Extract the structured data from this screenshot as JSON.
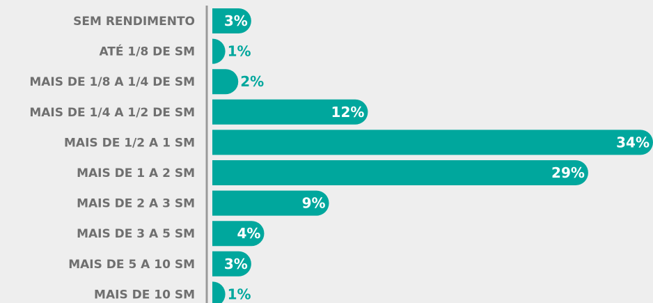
{
  "chart_data": {
    "type": "bar",
    "orientation": "horizontal",
    "categories": [
      "SEM RENDIMENTO",
      "ATÉ 1/8 DE SM",
      "MAIS DE 1/8 A 1/4 DE SM",
      "MAIS DE 1/4 A 1/2 DE SM",
      "MAIS DE 1/2 A 1 SM",
      "MAIS DE 1 A 2 SM",
      "MAIS DE 2 A 3 SM",
      "MAIS DE 3 A 5 SM",
      "MAIS DE 5 A 10 SM",
      "MAIS DE 10 SM"
    ],
    "values": [
      3,
      1,
      2,
      12,
      34,
      29,
      9,
      4,
      3,
      1
    ],
    "value_labels": [
      "3%",
      "1%",
      "2%",
      "12%",
      "34%",
      "29%",
      "9%",
      "4%",
      "3%",
      "1%"
    ],
    "title": "",
    "xlabel": "",
    "ylabel": "",
    "xlim": [
      0,
      34
    ],
    "grid": false,
    "legend": "none"
  },
  "colors": {
    "background": "#eeeeee",
    "bar": "#00a79d",
    "axis": "#9a9a9a",
    "category_text": "#6f6f6f",
    "label_inside": "#ffffff",
    "label_outside": "#00a79d"
  }
}
